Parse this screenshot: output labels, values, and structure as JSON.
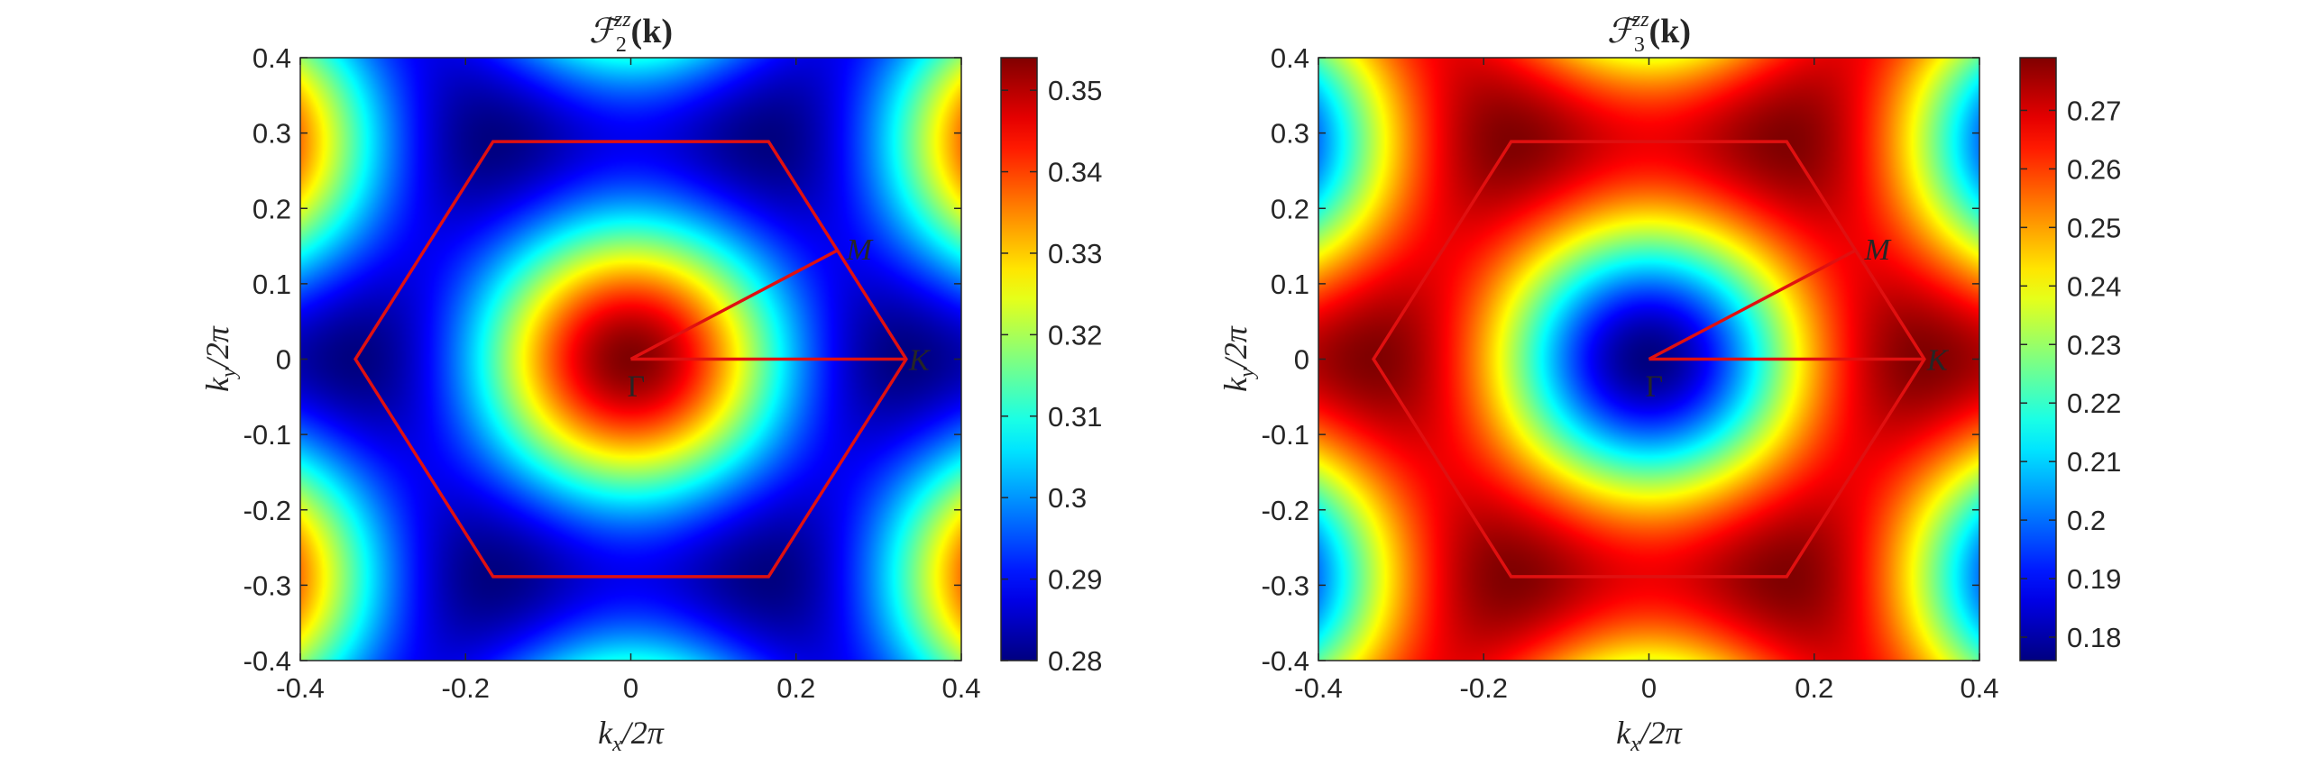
{
  "chart_data": [
    {
      "type": "heatmap",
      "title": {
        "main": "ℱ",
        "sub": "2",
        "sup": "zz",
        "arg": "(k)"
      },
      "xlabel": {
        "base": "k",
        "sub": "x",
        "rest": "/2π"
      },
      "ylabel": {
        "base": "k",
        "sub": "y",
        "rest": "/2π"
      },
      "xlim": [
        -0.4,
        0.4
      ],
      "ylim": [
        -0.4,
        0.4
      ],
      "xticks": [
        -0.4,
        -0.2,
        0,
        0.2,
        0.4
      ],
      "xtick_labels": [
        "-0.4",
        "-0.2",
        "0",
        "0.2",
        "0.4"
      ],
      "yticks": [
        -0.4,
        -0.3,
        -0.2,
        -0.1,
        0,
        0.1,
        0.2,
        0.3,
        0.4
      ],
      "ytick_labels": [
        "-0.4",
        "-0.3",
        "-0.2",
        "-0.1",
        "0",
        "0.1",
        "0.2",
        "0.3",
        "0.4"
      ],
      "colormap": "jet",
      "colorbar": {
        "range": [
          0.28,
          0.354
        ],
        "ticks": [
          0.28,
          0.29,
          0.3,
          0.31,
          0.32,
          0.33,
          0.34,
          0.35
        ],
        "tick_labels": [
          "0.28",
          "0.29",
          "0.3",
          "0.31",
          "0.32",
          "0.33",
          "0.34",
          "0.35"
        ]
      },
      "field": {
        "center_value": 0.354,
        "k_point_value": 0.28,
        "description_pattern": "maximum at Gamma, minima at K points, values decreasing radially"
      },
      "overlay": {
        "color": "#e01010",
        "brillouin_zone": [
          [
            0.3333,
            0
          ],
          [
            0.1667,
            0.2887
          ],
          [
            -0.1667,
            0.2887
          ],
          [
            -0.3333,
            0
          ],
          [
            -0.1667,
            -0.2887
          ],
          [
            0.1667,
            -0.2887
          ]
        ],
        "path_points": {
          "Gamma": [
            0,
            0
          ],
          "M": [
            0.25,
            0.1443
          ],
          "K": [
            0.3333,
            0
          ]
        },
        "labels": {
          "gamma": "Γ",
          "m": "M",
          "k": "K"
        }
      }
    },
    {
      "type": "heatmap",
      "title": {
        "main": "ℱ",
        "sub": "3",
        "sup": "zz",
        "arg": "(k)"
      },
      "xlabel": {
        "base": "k",
        "sub": "x",
        "rest": "/2π"
      },
      "ylabel": {
        "base": "k",
        "sub": "y",
        "rest": "/2π"
      },
      "xlim": [
        -0.4,
        0.4
      ],
      "ylim": [
        -0.4,
        0.4
      ],
      "xticks": [
        -0.4,
        -0.2,
        0,
        0.2,
        0.4
      ],
      "xtick_labels": [
        "-0.4",
        "-0.2",
        "0",
        "0.2",
        "0.4"
      ],
      "yticks": [
        -0.4,
        -0.3,
        -0.2,
        -0.1,
        0,
        0.1,
        0.2,
        0.3,
        0.4
      ],
      "ytick_labels": [
        "-0.4",
        "-0.3",
        "-0.2",
        "-0.1",
        "0",
        "0.1",
        "0.2",
        "0.3",
        "0.4"
      ],
      "colormap": "jet",
      "colorbar": {
        "range": [
          0.176,
          0.279
        ],
        "ticks": [
          0.18,
          0.19,
          0.2,
          0.21,
          0.22,
          0.23,
          0.24,
          0.25,
          0.26,
          0.27
        ],
        "tick_labels": [
          "0.18",
          "0.19",
          "0.2",
          "0.21",
          "0.22",
          "0.23",
          "0.24",
          "0.25",
          "0.26",
          "0.27"
        ]
      },
      "field": {
        "center_value": 0.176,
        "k_point_value": 0.279,
        "description_pattern": "minimum at Gamma, maxima at K points, values increasing radially"
      },
      "overlay": {
        "color": "#e01010",
        "brillouin_zone": [
          [
            0.3333,
            0
          ],
          [
            0.1667,
            0.2887
          ],
          [
            -0.1667,
            0.2887
          ],
          [
            -0.3333,
            0
          ],
          [
            -0.1667,
            -0.2887
          ],
          [
            0.1667,
            -0.2887
          ]
        ],
        "path_points": {
          "Gamma": [
            0,
            0
          ],
          "M": [
            0.25,
            0.1443
          ],
          "K": [
            0.3333,
            0
          ]
        },
        "labels": {
          "gamma": "Γ",
          "m": "M",
          "k": "K"
        }
      }
    }
  ]
}
